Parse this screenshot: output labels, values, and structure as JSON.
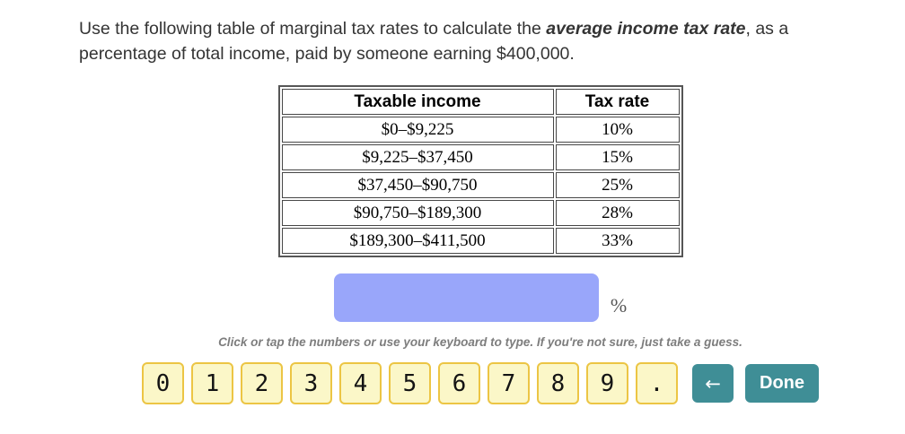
{
  "question": {
    "prefix": "Use the following table of marginal tax rates to calculate the ",
    "emphasis": "average income tax rate",
    "suffix": ", as a percentage of total income, paid by someone earning $400,000."
  },
  "table": {
    "headers": {
      "income": "Taxable income",
      "rate": "Tax rate"
    },
    "rows": [
      {
        "income": "$0–$9,225",
        "rate": "10%"
      },
      {
        "income": "$9,225–$37,450",
        "rate": "15%"
      },
      {
        "income": "$37,450–$90,750",
        "rate": "25%"
      },
      {
        "income": "$90,750–$189,300",
        "rate": "28%"
      },
      {
        "income": "$189,300–$411,500",
        "rate": "33%"
      }
    ]
  },
  "answer": {
    "value": "",
    "unit_label": "%"
  },
  "instruction": "Click or tap the numbers or use your keyboard to type. If you're not sure, just take a guess.",
  "keypad": {
    "keys": [
      "0",
      "1",
      "2",
      "3",
      "4",
      "5",
      "6",
      "7",
      "8",
      "9",
      "."
    ],
    "backspace_icon": "←",
    "done_label": "Done"
  },
  "colors": {
    "input_background": "#99A6FA",
    "key_background": "#FBF7C8",
    "key_border": "#ECC544",
    "action_button": "#3F8E96",
    "instruction_text": "#7d7d7d"
  }
}
